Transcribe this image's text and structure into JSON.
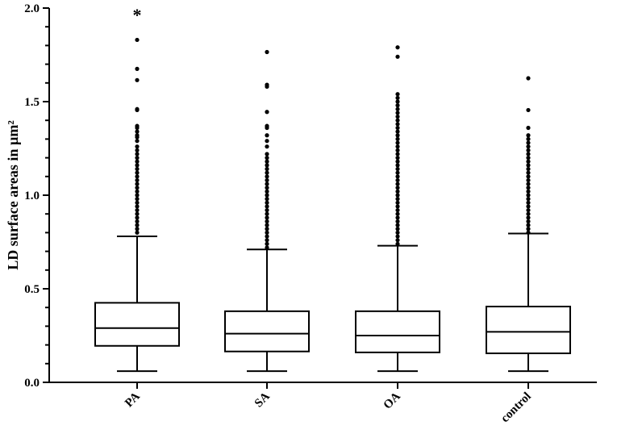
{
  "chart_data": {
    "type": "box",
    "title": "",
    "xlabel": "",
    "ylabel": "LD surface areas in µm²",
    "ylim": [
      0,
      2.0
    ],
    "yticks": [
      "0.0",
      "0.5",
      "1.0",
      "1.5",
      "2.0"
    ],
    "grid": false,
    "categories": [
      "PA",
      "SA",
      "OA",
      "control"
    ],
    "boxes": [
      {
        "category": "PA",
        "whisker_low": 0.06,
        "q1": 0.195,
        "median": 0.29,
        "q3": 0.425,
        "whisker_high": 0.78,
        "outliers": [
          1.83,
          1.675,
          1.615,
          1.46,
          1.455,
          1.37,
          1.36,
          1.34,
          1.32,
          1.31,
          1.29,
          1.26,
          1.24,
          1.22,
          1.2,
          1.18,
          1.16,
          1.14,
          1.12,
          1.1,
          1.08,
          1.06,
          1.04,
          1.02,
          1.0,
          0.98,
          0.96,
          0.94,
          0.92,
          0.9,
          0.88,
          0.86,
          0.84,
          0.82,
          0.8
        ],
        "annotation": "*"
      },
      {
        "category": "SA",
        "whisker_low": 0.06,
        "q1": 0.165,
        "median": 0.26,
        "q3": 0.38,
        "whisker_high": 0.71,
        "outliers": [
          1.765,
          1.59,
          1.58,
          1.445,
          1.37,
          1.36,
          1.32,
          1.29,
          1.26,
          1.22,
          1.2,
          1.18,
          1.16,
          1.14,
          1.12,
          1.1,
          1.08,
          1.06,
          1.04,
          1.02,
          1.0,
          0.98,
          0.96,
          0.94,
          0.92,
          0.9,
          0.88,
          0.86,
          0.84,
          0.82,
          0.8,
          0.78,
          0.76,
          0.74,
          0.72
        ],
        "annotation": ""
      },
      {
        "category": "OA",
        "whisker_low": 0.06,
        "q1": 0.16,
        "median": 0.25,
        "q3": 0.38,
        "whisker_high": 0.73,
        "outliers": [
          1.79,
          1.74,
          1.54,
          1.52,
          1.5,
          1.48,
          1.46,
          1.44,
          1.42,
          1.4,
          1.38,
          1.36,
          1.34,
          1.32,
          1.3,
          1.28,
          1.26,
          1.24,
          1.22,
          1.2,
          1.18,
          1.16,
          1.14,
          1.12,
          1.1,
          1.08,
          1.06,
          1.04,
          1.02,
          1.0,
          0.98,
          0.96,
          0.94,
          0.92,
          0.9,
          0.88,
          0.86,
          0.84,
          0.82,
          0.8,
          0.78,
          0.76,
          0.74
        ],
        "annotation": ""
      },
      {
        "category": "control",
        "whisker_low": 0.06,
        "q1": 0.155,
        "median": 0.27,
        "q3": 0.405,
        "whisker_high": 0.795,
        "outliers": [
          1.625,
          1.455,
          1.36,
          1.32,
          1.3,
          1.28,
          1.26,
          1.24,
          1.22,
          1.2,
          1.18,
          1.16,
          1.14,
          1.12,
          1.1,
          1.08,
          1.06,
          1.04,
          1.02,
          1.0,
          0.98,
          0.96,
          0.94,
          0.92,
          0.9,
          0.88,
          0.86,
          0.84,
          0.82,
          0.8
        ],
        "annotation": ""
      }
    ]
  }
}
